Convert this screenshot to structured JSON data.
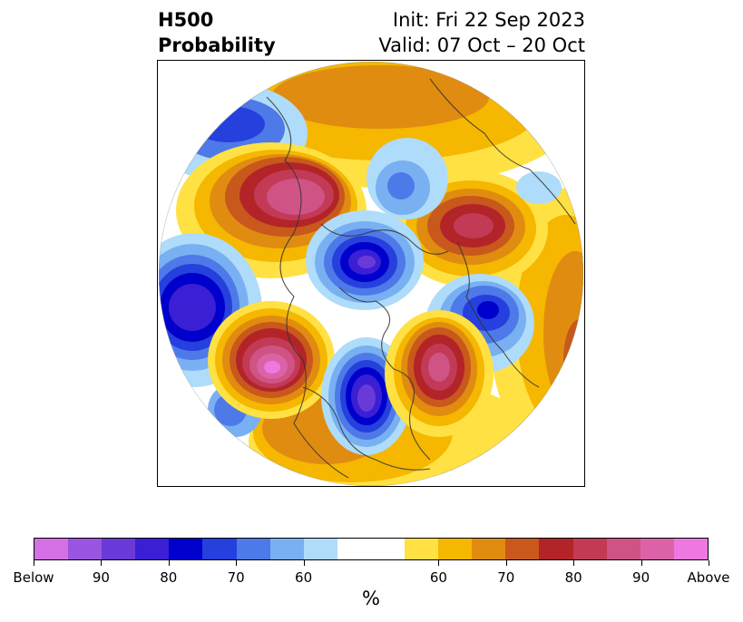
{
  "title": {
    "left_line1": "H500",
    "left_line2": "Probability",
    "right_line1": "Init: Fri 22 Sep 2023",
    "right_line2": "Valid: 07 Oct – 20 Oct"
  },
  "map": {
    "projection": "north-polar-stereographic",
    "anomalies": [
      {
        "region": "Alaska / Bering",
        "category": "above",
        "level": "90"
      },
      {
        "region": "Western Canada / Pacific Northwest",
        "category": "above",
        "level": "Above"
      },
      {
        "region": "Central United States",
        "category": "below",
        "level": "90"
      },
      {
        "region": "Labrador / Western Atlantic",
        "category": "above",
        "level": "80"
      },
      {
        "region": "North Atlantic",
        "category": "below",
        "level": "80"
      },
      {
        "region": "Arctic Ocean / Greenland",
        "category": "below",
        "level": "90"
      },
      {
        "region": "Western Russia / Scandinavia",
        "category": "above",
        "level": "90"
      },
      {
        "region": "Siberia",
        "category": "below",
        "level": "70"
      },
      {
        "region": "Central Asia",
        "category": "above",
        "level": "90"
      },
      {
        "region": "North Pacific",
        "category": "below",
        "level": "90"
      }
    ]
  },
  "colorbar": {
    "colors": [
      "#d470e4",
      "#9a55e0",
      "#6a3ad8",
      "#3a1fd4",
      "#0000cc",
      "#2540dd",
      "#4e79e8",
      "#79b0f2",
      "#aedcfa",
      "#ffffff",
      "#ffffff",
      "#ffe144",
      "#f5b700",
      "#e08c10",
      "#c8581c",
      "#b22428",
      "#c23a55",
      "#cf5485",
      "#dc62a8",
      "#ec78e0"
    ],
    "labels": [
      "Below",
      "90",
      "80",
      "70",
      "60",
      "60",
      "70",
      "80",
      "90",
      "Above"
    ],
    "unit": "%"
  }
}
